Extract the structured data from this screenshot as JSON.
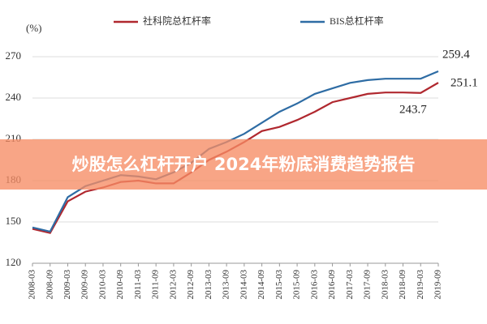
{
  "chart_data": {
    "type": "line",
    "y_unit_label": "(%)",
    "categories": [
      "2008-03",
      "2008-09",
      "2009-03",
      "2009-09",
      "2010-03",
      "2010-09",
      "2011-03",
      "2011-09",
      "2012-03",
      "2012-09",
      "2013-03",
      "2013-09",
      "2014-03",
      "2014-09",
      "2015-03",
      "2015-09",
      "2016-03",
      "2016-09",
      "2017-03",
      "2017-09",
      "2018-03",
      "2018-09",
      "2019-03",
      "2019-09"
    ],
    "series": [
      {
        "name": "社科院总杠杆率",
        "color": "#b0282f",
        "values": [
          145,
          142,
          165,
          172,
          175,
          179,
          180,
          178,
          178,
          186,
          195,
          201,
          208,
          216,
          219,
          224,
          230,
          237,
          240,
          243,
          244,
          244,
          243.7,
          251.1
        ]
      },
      {
        "name": "BIS总杠杆率",
        "color": "#2e6ca4",
        "values": [
          146,
          143,
          168,
          176,
          180,
          184,
          183,
          181,
          186,
          193,
          203,
          208,
          214,
          222,
          230,
          236,
          243,
          247,
          251,
          253,
          254,
          254,
          254,
          259.4
        ]
      }
    ],
    "annotations": [
      "259.4",
      "251.1",
      "243.7"
    ],
    "ylim": [
      120,
      270
    ],
    "yticks": [
      120,
      150,
      180,
      210,
      240,
      270
    ],
    "grid": true,
    "legend": "top"
  },
  "banner": "炒股怎么杠杆开户 2024年粉底消费趋势报告"
}
